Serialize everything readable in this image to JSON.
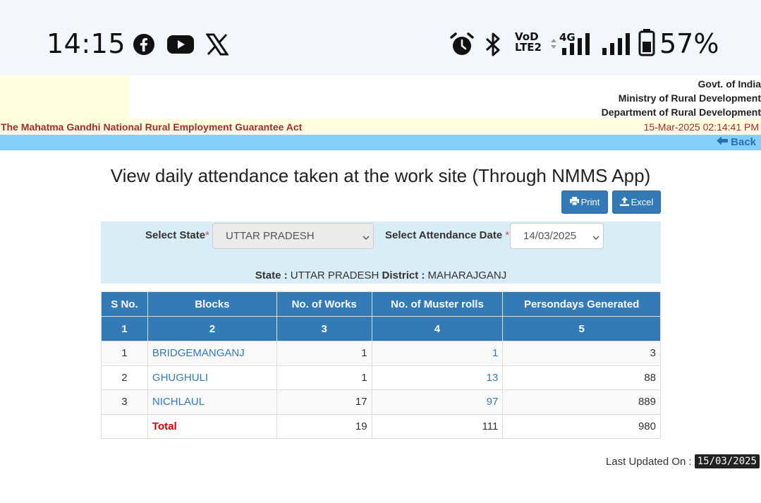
{
  "status_bar": {
    "time": "14:15",
    "network_type": "4G",
    "volte_line1": "VoD",
    "volte_line2": "LTE2",
    "battery_percent": "57%",
    "icons": [
      "facebook-icon",
      "youtube-icon",
      "x-icon",
      "alarm-icon",
      "bluetooth-icon",
      "signal-icon",
      "battery-icon"
    ]
  },
  "header": {
    "line1": "Govt. of India",
    "line2": "Ministry of Rural Development",
    "line3": "Department of Rural Development",
    "act_title": "The Mahatma Gandhi National Rural Employment Guarantee Act",
    "datetime": "15-Mar-2025 02:14:41 PM",
    "back_label": "Back"
  },
  "page": {
    "title": "View daily attendance taken at the work site (Through NMMS App)",
    "print_label": "Print",
    "excel_label": "Excel"
  },
  "filters": {
    "state_label": "Select State",
    "required_mark": "*",
    "state_value": "UTTAR PRADESH",
    "date_label": "Select Attendance Date",
    "date_value": "14/03/2025",
    "state_info_label": "State :",
    "state_info_value": "UTTAR PRADESH",
    "district_info_label": "District :",
    "district_info_value": "MAHARAJGANJ"
  },
  "table": {
    "headers": [
      "S No.",
      "Blocks",
      "No. of Works",
      "No. of Muster rolls",
      "Persondays Generated"
    ],
    "header_numbers": [
      "1",
      "2",
      "3",
      "4",
      "5"
    ],
    "rows": [
      {
        "sno": "1",
        "block": "BRIDGEMANGANJ",
        "works": "1",
        "muster_rolls": "1",
        "persondays": "3"
      },
      {
        "sno": "2",
        "block": "GHUGHULI",
        "works": "1",
        "muster_rolls": "13",
        "persondays": "88"
      },
      {
        "sno": "3",
        "block": "NICHLAUL",
        "works": "17",
        "muster_rolls": "97",
        "persondays": "889"
      }
    ],
    "total": {
      "label": "Total",
      "works": "19",
      "muster_rolls": "111",
      "persondays": "980"
    }
  },
  "footer": {
    "last_updated_label": "Last Updated On :",
    "last_updated_value": "15/03/2025"
  },
  "colors": {
    "primary": "#337ab7",
    "act_text": "#a52a2a",
    "back_bar": "#87cefa",
    "panel_bg": "#d9edf7",
    "header_bg": "#ffffe0",
    "total_text": "#cc0000"
  }
}
